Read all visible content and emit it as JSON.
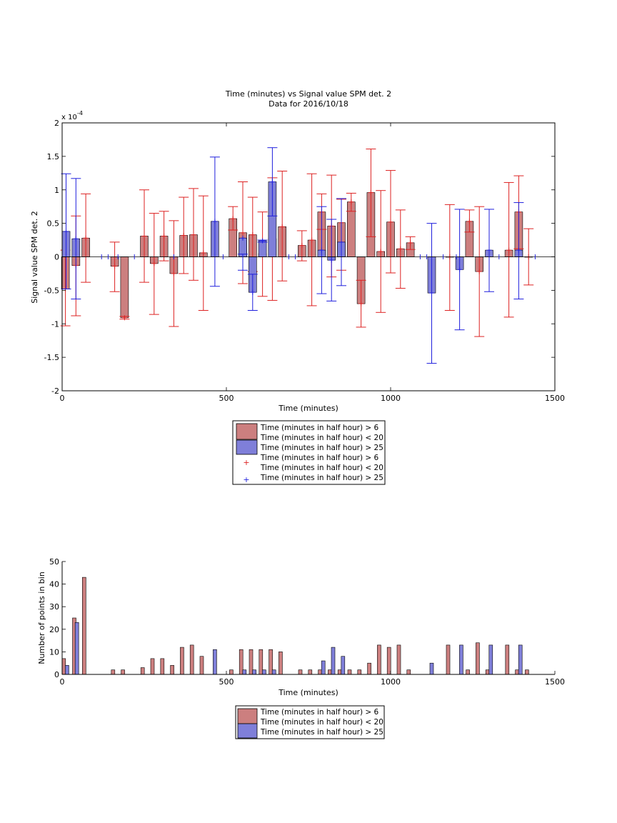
{
  "colors": {
    "red_bar": "#cc7f7f",
    "blue_bar": "#7f7fd9",
    "red_err": "#dd2222",
    "blue_err": "#1f1fdd",
    "axis": "#000000"
  },
  "legend_main": [
    {
      "label_line1": "Time (minutes in half hour) > 6",
      "label_line2": "Time (minutes in half hour) < 20",
      "kind": "patch",
      "color": "#cc7f7f"
    },
    {
      "label_line1": "Time (minutes in half hour) > 25",
      "label_line2": "",
      "kind": "patch",
      "color": "#7f7fd9"
    },
    {
      "label_line1": "Time (minutes in half hour) > 6",
      "label_line2": "Time (minutes in half hour) < 20",
      "kind": "marker",
      "color": "#dd2222"
    },
    {
      "label_line1": "Time (minutes in half hour) > 25",
      "label_line2": "",
      "kind": "marker",
      "color": "#1f1fdd"
    }
  ],
  "legend_hist": [
    {
      "label_line1": "Time (minutes in half hour) > 6",
      "label_line2": "Time (minutes in half hour) < 20",
      "kind": "patch",
      "color": "#cc7f7f"
    },
    {
      "label_line1": "Time (minutes in half hour) > 25",
      "label_line2": "",
      "kind": "patch",
      "color": "#7f7fd9"
    }
  ],
  "chart_data": [
    {
      "type": "bar",
      "title": "Time (minutes) vs Signal value SPM det. 2",
      "subtitle": "Data for 2016/10/18",
      "xlabel": "Time (minutes)",
      "ylabel": "Signal value SPM det. 2",
      "y_exponent_label": "x 10",
      "y_exponent_power": "-4",
      "xlim": [
        0,
        1500
      ],
      "ylim": [
        -2,
        2
      ],
      "xticks": [
        0,
        500,
        1000,
        1500
      ],
      "yticks": [
        -2,
        -1.5,
        -1,
        -0.5,
        0,
        0.5,
        1,
        1.5,
        2
      ],
      "ytick_labels": [
        "-2",
        "-1.5",
        "-1",
        "-0.5",
        "0",
        "0.5",
        "1",
        "1.5",
        "2"
      ],
      "grid": false,
      "legend_position": "below",
      "series": [
        {
          "name": "Time (minutes in half hour) > 6 Time (minutes in half hour) < 20",
          "color": "#cc7f7f",
          "points": [
            {
              "x": 10,
              "y": -0.48,
              "lo": -1.03,
              "hi": 0.1
            },
            {
              "x": 42,
              "y": -0.13,
              "lo": -0.88,
              "hi": 0.61
            },
            {
              "x": 72,
              "y": 0.28,
              "lo": -0.38,
              "hi": 0.94
            },
            {
              "x": 160,
              "y": -0.14,
              "lo": -0.52,
              "hi": 0.22
            },
            {
              "x": 190,
              "y": -0.91,
              "lo": -0.93,
              "hi": -0.89
            },
            {
              "x": 250,
              "y": 0.31,
              "lo": -0.38,
              "hi": 1.0
            },
            {
              "x": 280,
              "y": -0.1,
              "lo": -0.86,
              "hi": 0.65
            },
            {
              "x": 310,
              "y": 0.31,
              "lo": -0.06,
              "hi": 0.68
            },
            {
              "x": 340,
              "y": -0.25,
              "lo": -1.04,
              "hi": 0.54
            },
            {
              "x": 370,
              "y": 0.32,
              "lo": -0.25,
              "hi": 0.89
            },
            {
              "x": 400,
              "y": 0.33,
              "lo": -0.35,
              "hi": 1.02
            },
            {
              "x": 430,
              "y": 0.06,
              "lo": -0.8,
              "hi": 0.91
            },
            {
              "x": 520,
              "y": 0.57,
              "lo": 0.4,
              "hi": 0.75
            },
            {
              "x": 550,
              "y": 0.36,
              "lo": -0.4,
              "hi": 1.12
            },
            {
              "x": 580,
              "y": 0.33,
              "lo": -0.22,
              "hi": 0.89
            },
            {
              "x": 610,
              "y": 0.05,
              "lo": -0.59,
              "hi": 0.67
            },
            {
              "x": 640,
              "y": 0.27,
              "lo": -0.65,
              "hi": 1.18
            },
            {
              "x": 670,
              "y": 0.45,
              "lo": -0.36,
              "hi": 1.28
            },
            {
              "x": 730,
              "y": 0.17,
              "lo": -0.06,
              "hi": 0.39
            },
            {
              "x": 760,
              "y": 0.25,
              "lo": -0.73,
              "hi": 1.24
            },
            {
              "x": 790,
              "y": 0.67,
              "lo": 0.41,
              "hi": 0.94
            },
            {
              "x": 820,
              "y": 0.46,
              "lo": -0.3,
              "hi": 1.22
            },
            {
              "x": 850,
              "y": 0.51,
              "lo": -0.2,
              "hi": 0.86
            },
            {
              "x": 880,
              "y": 0.82,
              "lo": 0.68,
              "hi": 0.95
            },
            {
              "x": 910,
              "y": -0.7,
              "lo": -1.05,
              "hi": -0.35
            },
            {
              "x": 940,
              "y": 0.96,
              "lo": 0.3,
              "hi": 1.61
            },
            {
              "x": 970,
              "y": 0.08,
              "lo": -0.83,
              "hi": 0.99
            },
            {
              "x": 1000,
              "y": 0.52,
              "lo": -0.24,
              "hi": 1.29
            },
            {
              "x": 1030,
              "y": 0.12,
              "lo": -0.47,
              "hi": 0.7
            },
            {
              "x": 1060,
              "y": 0.21,
              "lo": 0.11,
              "hi": 0.3
            },
            {
              "x": 1180,
              "y": 0.0,
              "lo": -0.8,
              "hi": 0.78
            },
            {
              "x": 1240,
              "y": 0.53,
              "lo": 0.37,
              "hi": 0.7
            },
            {
              "x": 1270,
              "y": -0.22,
              "lo": -1.19,
              "hi": 0.75
            },
            {
              "x": 1360,
              "y": 0.1,
              "lo": -0.9,
              "hi": 1.11
            },
            {
              "x": 1390,
              "y": 0.67,
              "lo": 0.12,
              "hi": 1.21
            },
            {
              "x": 1420,
              "y": 0.0,
              "lo": -0.42,
              "hi": 0.42
            }
          ]
        },
        {
          "name": "Time (minutes in half hour) > 25",
          "color": "#7f7fd9",
          "points": [
            {
              "x": 12,
              "y": 0.38,
              "lo": -0.48,
              "hi": 1.24
            },
            {
              "x": 42,
              "y": 0.27,
              "lo": -0.63,
              "hi": 1.17
            },
            {
              "x": 465,
              "y": 0.53,
              "lo": -0.44,
              "hi": 1.49
            },
            {
              "x": 550,
              "y": 0.28,
              "lo": -0.2,
              "hi": 0.04
            },
            {
              "x": 580,
              "y": -0.53,
              "lo": -0.8,
              "hi": -0.26
            },
            {
              "x": 610,
              "y": 0.24,
              "lo": 0.22,
              "hi": 0.25
            },
            {
              "x": 640,
              "y": 1.12,
              "lo": 0.61,
              "hi": 1.63
            },
            {
              "x": 790,
              "y": 0.1,
              "lo": -0.55,
              "hi": 0.75
            },
            {
              "x": 820,
              "y": -0.05,
              "lo": -0.66,
              "hi": 0.56
            },
            {
              "x": 850,
              "y": 0.22,
              "lo": -0.43,
              "hi": 0.87
            },
            {
              "x": 1125,
              "y": -0.54,
              "lo": -1.59,
              "hi": 0.5
            },
            {
              "x": 1210,
              "y": -0.19,
              "lo": -1.09,
              "hi": 0.71
            },
            {
              "x": 1300,
              "y": 0.1,
              "lo": -0.52,
              "hi": 0.71
            },
            {
              "x": 1390,
              "y": 0.1,
              "lo": -0.63,
              "hi": 0.81
            }
          ]
        }
      ],
      "zero_markers_x": [
        120,
        140,
        170,
        220,
        340,
        490,
        550,
        690,
        710,
        1090,
        1110,
        1160,
        1200,
        1300,
        1330,
        1440
      ]
    },
    {
      "type": "bar",
      "title": "",
      "xlabel": "Time (minutes)",
      "ylabel": "Number of points in bin",
      "xlim": [
        0,
        1500
      ],
      "ylim": [
        0,
        50
      ],
      "xticks": [
        0,
        500,
        1000,
        1500
      ],
      "yticks": [
        0,
        10,
        20,
        30,
        40,
        50
      ],
      "grid": false,
      "legend_position": "below",
      "series": [
        {
          "name": "Time (minutes in half hour) > 6 Time (minutes in half hour) < 20",
          "color": "#cc7f7f",
          "points": [
            {
              "x": 5,
              "y": 7
            },
            {
              "x": 37,
              "y": 25
            },
            {
              "x": 67,
              "y": 43
            },
            {
              "x": 155,
              "y": 2
            },
            {
              "x": 185,
              "y": 2
            },
            {
              "x": 245,
              "y": 3
            },
            {
              "x": 275,
              "y": 7
            },
            {
              "x": 305,
              "y": 7
            },
            {
              "x": 335,
              "y": 4
            },
            {
              "x": 365,
              "y": 12
            },
            {
              "x": 395,
              "y": 13
            },
            {
              "x": 425,
              "y": 8
            },
            {
              "x": 515,
              "y": 2
            },
            {
              "x": 545,
              "y": 11
            },
            {
              "x": 575,
              "y": 11
            },
            {
              "x": 605,
              "y": 11
            },
            {
              "x": 635,
              "y": 11
            },
            {
              "x": 665,
              "y": 10
            },
            {
              "x": 725,
              "y": 2
            },
            {
              "x": 755,
              "y": 2
            },
            {
              "x": 785,
              "y": 2
            },
            {
              "x": 815,
              "y": 2
            },
            {
              "x": 845,
              "y": 2
            },
            {
              "x": 875,
              "y": 2
            },
            {
              "x": 905,
              "y": 2
            },
            {
              "x": 935,
              "y": 5
            },
            {
              "x": 965,
              "y": 13
            },
            {
              "x": 995,
              "y": 12
            },
            {
              "x": 1025,
              "y": 13
            },
            {
              "x": 1055,
              "y": 2
            },
            {
              "x": 1175,
              "y": 13
            },
            {
              "x": 1235,
              "y": 2
            },
            {
              "x": 1265,
              "y": 14
            },
            {
              "x": 1295,
              "y": 2
            },
            {
              "x": 1355,
              "y": 13
            },
            {
              "x": 1385,
              "y": 2
            },
            {
              "x": 1415,
              "y": 2
            }
          ]
        },
        {
          "name": "Time (minutes in half hour) > 25",
          "color": "#7f7fd9",
          "points": [
            {
              "x": 15,
              "y": 4
            },
            {
              "x": 45,
              "y": 23
            },
            {
              "x": 465,
              "y": 11
            },
            {
              "x": 555,
              "y": 2
            },
            {
              "x": 585,
              "y": 2
            },
            {
              "x": 615,
              "y": 2
            },
            {
              "x": 645,
              "y": 2
            },
            {
              "x": 795,
              "y": 6
            },
            {
              "x": 825,
              "y": 12
            },
            {
              "x": 855,
              "y": 8
            },
            {
              "x": 1125,
              "y": 5
            },
            {
              "x": 1215,
              "y": 13
            },
            {
              "x": 1305,
              "y": 13
            },
            {
              "x": 1395,
              "y": 13
            }
          ]
        }
      ]
    }
  ]
}
